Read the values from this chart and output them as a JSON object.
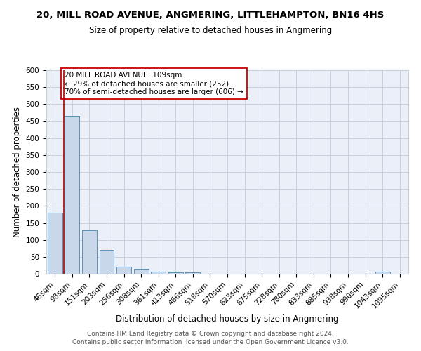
{
  "title_line1": "20, MILL ROAD AVENUE, ANGMERING, LITTLEHAMPTON, BN16 4HS",
  "title_line2": "Size of property relative to detached houses in Angmering",
  "xlabel": "Distribution of detached houses by size in Angmering",
  "ylabel": "Number of detached properties",
  "categories": [
    "46sqm",
    "98sqm",
    "151sqm",
    "203sqm",
    "256sqm",
    "308sqm",
    "361sqm",
    "413sqm",
    "466sqm",
    "518sqm",
    "570sqm",
    "623sqm",
    "675sqm",
    "728sqm",
    "780sqm",
    "833sqm",
    "885sqm",
    "938sqm",
    "990sqm",
    "1043sqm",
    "1095sqm"
  ],
  "values": [
    180,
    465,
    128,
    70,
    20,
    14,
    6,
    5,
    5,
    0,
    0,
    0,
    0,
    0,
    0,
    0,
    0,
    0,
    0,
    6,
    0
  ],
  "bar_color": "#c8d8ea",
  "bar_edge_color": "#6090b8",
  "grid_color": "#c8d0dc",
  "bg_color": "#eaeff8",
  "vline_x": 0.5,
  "vline_color": "#aa0000",
  "annotation_text": "20 MILL ROAD AVENUE: 109sqm\n← 29% of detached houses are smaller (252)\n70% of semi-detached houses are larger (606) →",
  "annotation_box_color": "white",
  "annotation_box_edge": "#cc0000",
  "footer_line1": "Contains HM Land Registry data © Crown copyright and database right 2024.",
  "footer_line2": "Contains public sector information licensed under the Open Government Licence v3.0.",
  "ylim": [
    0,
    600
  ],
  "yticks": [
    0,
    50,
    100,
    150,
    200,
    250,
    300,
    350,
    400,
    450,
    500,
    550,
    600
  ],
  "title_fontsize": 9.5,
  "subtitle_fontsize": 8.5,
  "axis_label_fontsize": 8.5,
  "tick_fontsize": 7.5,
  "annotation_fontsize": 7.5,
  "footer_fontsize": 6.5
}
